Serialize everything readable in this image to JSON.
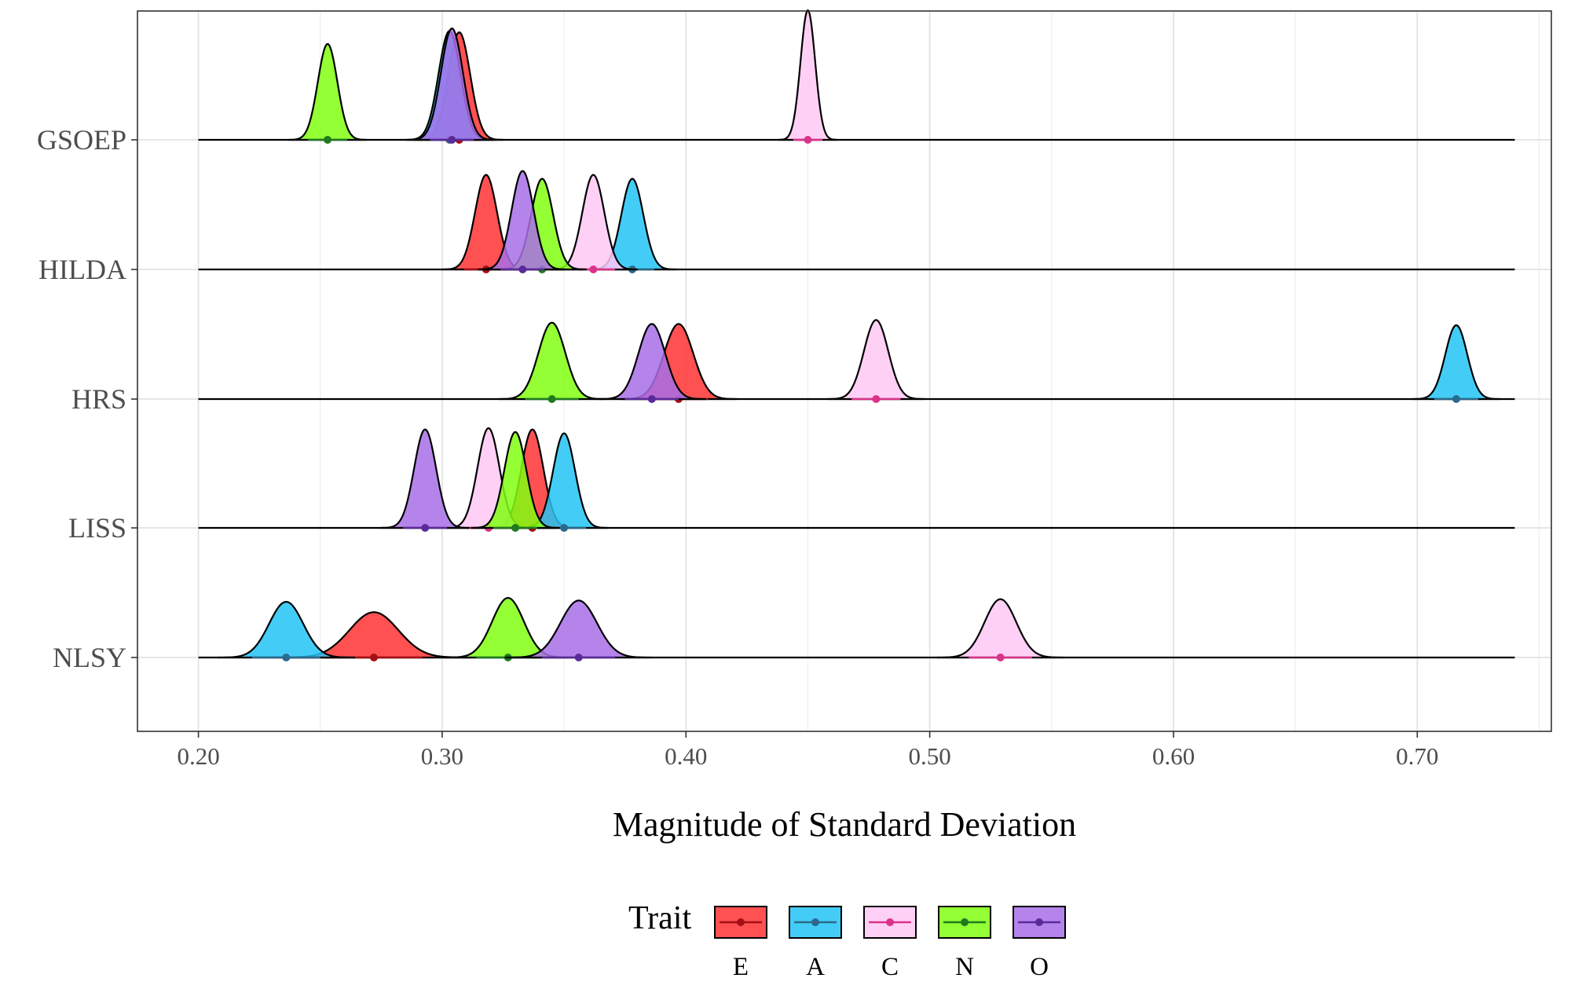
{
  "chart_data": {
    "type": "ridgeline",
    "title": "",
    "xlabel": "Magnitude of Standard Deviation",
    "ylabel": "",
    "xlim": [
      0.175,
      0.755
    ],
    "xticks": [
      "0.20",
      "0.30",
      "0.40",
      "0.50",
      "0.60",
      "0.70"
    ],
    "baseline_range": [
      0.2,
      0.74
    ],
    "grid": true,
    "legend_position": "bottom",
    "legend_title": "Trait",
    "traits": [
      {
        "key": "E",
        "label": "E",
        "fill": "#ff3333",
        "point": "#a50f15"
      },
      {
        "key": "A",
        "label": "A",
        "fill": "#22c4f5",
        "point": "#2b6a8c"
      },
      {
        "key": "C",
        "label": "C",
        "fill": "#ffc8f5",
        "point": "#d9338a"
      },
      {
        "key": "N",
        "label": "N",
        "fill": "#80ff10",
        "point": "#1f7a1f"
      },
      {
        "key": "O",
        "label": "O",
        "fill": "#a86ee8",
        "point": "#5b2a9a"
      }
    ],
    "categories": [
      "GSOEP",
      "HILDA",
      "HRS",
      "LISS",
      "NLSY"
    ],
    "series": [
      {
        "name": "GSOEP",
        "distributions": [
          {
            "trait": "E",
            "mean": 0.307,
            "sd": 0.0045,
            "rel_height": 0.83
          },
          {
            "trait": "A",
            "mean": 0.303,
            "sd": 0.0045,
            "rel_height": 0.84
          },
          {
            "trait": "C",
            "mean": 0.45,
            "sd": 0.003,
            "rel_height": 1.0
          },
          {
            "trait": "N",
            "mean": 0.253,
            "sd": 0.004,
            "rel_height": 0.74
          },
          {
            "trait": "O",
            "mean": 0.304,
            "sd": 0.0045,
            "rel_height": 0.86
          }
        ]
      },
      {
        "name": "HILDA",
        "distributions": [
          {
            "trait": "E",
            "mean": 0.318,
            "sd": 0.0045,
            "rel_height": 0.73
          },
          {
            "trait": "A",
            "mean": 0.378,
            "sd": 0.0045,
            "rel_height": 0.7
          },
          {
            "trait": "C",
            "mean": 0.362,
            "sd": 0.0045,
            "rel_height": 0.73
          },
          {
            "trait": "N",
            "mean": 0.341,
            "sd": 0.0045,
            "rel_height": 0.7
          },
          {
            "trait": "O",
            "mean": 0.333,
            "sd": 0.0045,
            "rel_height": 0.76
          }
        ]
      },
      {
        "name": "HRS",
        "distributions": [
          {
            "trait": "E",
            "mean": 0.397,
            "sd": 0.006,
            "rel_height": 0.58
          },
          {
            "trait": "A",
            "mean": 0.716,
            "sd": 0.0045,
            "rel_height": 0.57
          },
          {
            "trait": "C",
            "mean": 0.478,
            "sd": 0.005,
            "rel_height": 0.61
          },
          {
            "trait": "N",
            "mean": 0.345,
            "sd": 0.0055,
            "rel_height": 0.59
          },
          {
            "trait": "O",
            "mean": 0.386,
            "sd": 0.0055,
            "rel_height": 0.58
          }
        ]
      },
      {
        "name": "LISS",
        "distributions": [
          {
            "trait": "E",
            "mean": 0.337,
            "sd": 0.0045,
            "rel_height": 0.76
          },
          {
            "trait": "A",
            "mean": 0.35,
            "sd": 0.0045,
            "rel_height": 0.73
          },
          {
            "trait": "C",
            "mean": 0.319,
            "sd": 0.0045,
            "rel_height": 0.77
          },
          {
            "trait": "N",
            "mean": 0.33,
            "sd": 0.0045,
            "rel_height": 0.74
          },
          {
            "trait": "O",
            "mean": 0.293,
            "sd": 0.0045,
            "rel_height": 0.76
          }
        ]
      },
      {
        "name": "NLSY",
        "distributions": [
          {
            "trait": "E",
            "mean": 0.272,
            "sd": 0.01,
            "rel_height": 0.35
          },
          {
            "trait": "A",
            "mean": 0.236,
            "sd": 0.007,
            "rel_height": 0.43
          },
          {
            "trait": "C",
            "mean": 0.529,
            "sd": 0.0065,
            "rel_height": 0.45
          },
          {
            "trait": "N",
            "mean": 0.327,
            "sd": 0.0065,
            "rel_height": 0.46
          },
          {
            "trait": "O",
            "mean": 0.356,
            "sd": 0.0075,
            "rel_height": 0.44
          }
        ]
      }
    ]
  }
}
